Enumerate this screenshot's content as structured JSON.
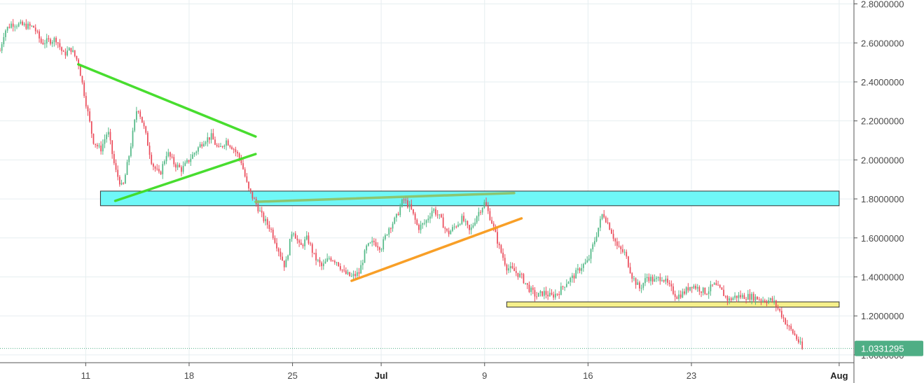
{
  "chart_data": {
    "type": "candlestick",
    "y_axis": {
      "ticks": [
        "2.8000000",
        "2.6000000",
        "2.4000000",
        "2.2000000",
        "2.0000000",
        "1.8000000",
        "1.6000000",
        "1.4000000",
        "1.2000000",
        "1.0000000"
      ],
      "tick_values": [
        2.8,
        2.6,
        2.4,
        2.2,
        2.0,
        1.8,
        1.6,
        1.4,
        1.2,
        1.0
      ],
      "ylim": [
        0.96,
        2.82
      ]
    },
    "x_axis": {
      "labels": [
        {
          "text": "11",
          "day": 11
        },
        {
          "text": "18",
          "day": 18
        },
        {
          "text": "25",
          "day": 25
        },
        {
          "text": "Jul",
          "day": 31,
          "bold": true
        },
        {
          "text": "9",
          "day": 38
        },
        {
          "text": "16",
          "day": 45
        },
        {
          "text": "23",
          "day": 52
        },
        {
          "text": "Aug",
          "day": 62,
          "bold": true
        }
      ],
      "xlim": [
        5.2,
        63.0
      ]
    },
    "last_price": {
      "text": "1.0331295",
      "value": 1.0331295,
      "color": "#4fae85"
    },
    "colors": {
      "up": "#53b987",
      "down": "#eb4d5c",
      "grid": "#e6eef0",
      "axis": "#555555"
    },
    "path": [
      [
        5.2,
        2.56
      ],
      [
        5.5,
        2.66
      ],
      [
        6.0,
        2.7
      ],
      [
        7.5,
        2.68
      ],
      [
        8.0,
        2.6
      ],
      [
        9.0,
        2.62
      ],
      [
        9.5,
        2.54
      ],
      [
        10.0,
        2.57
      ],
      [
        10.5,
        2.5
      ],
      [
        11.0,
        2.3
      ],
      [
        11.5,
        2.1
      ],
      [
        12.0,
        2.05
      ],
      [
        12.5,
        2.15
      ],
      [
        13.0,
        1.95
      ],
      [
        13.5,
        1.85
      ],
      [
        14.0,
        2.05
      ],
      [
        14.5,
        2.28
      ],
      [
        15.0,
        2.15
      ],
      [
        15.5,
        1.98
      ],
      [
        16.0,
        1.92
      ],
      [
        16.5,
        2.04
      ],
      [
        17.0,
        1.98
      ],
      [
        17.5,
        1.95
      ],
      [
        18.0,
        2.0
      ],
      [
        18.5,
        2.05
      ],
      [
        19.0,
        2.1
      ],
      [
        19.5,
        2.12
      ],
      [
        20.0,
        2.05
      ],
      [
        20.5,
        2.1
      ],
      [
        21.0,
        2.06
      ],
      [
        21.5,
        2.0
      ],
      [
        22.0,
        1.85
      ],
      [
        22.5,
        1.78
      ],
      [
        23.0,
        1.7
      ],
      [
        23.5,
        1.65
      ],
      [
        24.0,
        1.55
      ],
      [
        24.5,
        1.45
      ],
      [
        25.0,
        1.65
      ],
      [
        25.5,
        1.55
      ],
      [
        26.0,
        1.6
      ],
      [
        26.5,
        1.5
      ],
      [
        27.0,
        1.45
      ],
      [
        27.5,
        1.5
      ],
      [
        28.0,
        1.48
      ],
      [
        28.5,
        1.42
      ],
      [
        29.0,
        1.4
      ],
      [
        29.5,
        1.42
      ],
      [
        30.0,
        1.55
      ],
      [
        30.5,
        1.58
      ],
      [
        31.0,
        1.55
      ],
      [
        31.5,
        1.65
      ],
      [
        32.0,
        1.7
      ],
      [
        32.5,
        1.8
      ],
      [
        33.0,
        1.75
      ],
      [
        33.5,
        1.65
      ],
      [
        34.0,
        1.68
      ],
      [
        34.5,
        1.75
      ],
      [
        35.0,
        1.7
      ],
      [
        35.5,
        1.62
      ],
      [
        36.0,
        1.66
      ],
      [
        36.5,
        1.7
      ],
      [
        37.0,
        1.63
      ],
      [
        37.5,
        1.72
      ],
      [
        38.0,
        1.78
      ],
      [
        38.5,
        1.68
      ],
      [
        39.0,
        1.55
      ],
      [
        39.5,
        1.45
      ],
      [
        40.0,
        1.43
      ],
      [
        40.5,
        1.4
      ],
      [
        41.0,
        1.34
      ],
      [
        41.5,
        1.3
      ],
      [
        42.0,
        1.32
      ],
      [
        42.5,
        1.3
      ],
      [
        43.0,
        1.32
      ],
      [
        43.5,
        1.37
      ],
      [
        44.0,
        1.4
      ],
      [
        44.5,
        1.45
      ],
      [
        45.0,
        1.48
      ],
      [
        45.5,
        1.6
      ],
      [
        46.0,
        1.73
      ],
      [
        46.5,
        1.65
      ],
      [
        47.0,
        1.55
      ],
      [
        47.5,
        1.52
      ],
      [
        48.0,
        1.4
      ],
      [
        48.5,
        1.34
      ],
      [
        49.0,
        1.4
      ],
      [
        49.5,
        1.38
      ],
      [
        50.0,
        1.4
      ],
      [
        50.5,
        1.35
      ],
      [
        51.0,
        1.3
      ],
      [
        51.5,
        1.32
      ],
      [
        52.0,
        1.36
      ],
      [
        52.5,
        1.34
      ],
      [
        53.0,
        1.32
      ],
      [
        53.5,
        1.36
      ],
      [
        54.0,
        1.33
      ],
      [
        54.5,
        1.28
      ],
      [
        55.0,
        1.3
      ],
      [
        55.5,
        1.3
      ],
      [
        56.0,
        1.3
      ],
      [
        56.5,
        1.29
      ],
      [
        57.0,
        1.28
      ],
      [
        57.5,
        1.28
      ],
      [
        58.0,
        1.22
      ],
      [
        58.5,
        1.15
      ],
      [
        59.0,
        1.1
      ],
      [
        59.5,
        1.035
      ]
    ],
    "annotations": {
      "triangle_upper": {
        "from": [
          10.5,
          2.49
        ],
        "to": [
          22.5,
          2.12
        ],
        "color": "#3fdc24"
      },
      "triangle_lower": {
        "from": [
          13.0,
          1.79
        ],
        "to": [
          22.5,
          2.03
        ],
        "color": "#3fdc24"
      },
      "cyan_zone": {
        "x": [
          12.0,
          62.0
        ],
        "y": [
          1.765,
          1.84
        ],
        "color": "#6ff7f7"
      },
      "green_line": {
        "from": [
          22.5,
          1.785
        ],
        "to": [
          40.0,
          1.83
        ],
        "color": "#8dc46a"
      },
      "orange_line": {
        "from": [
          29.0,
          1.38
        ],
        "to": [
          40.5,
          1.7
        ],
        "color": "#f89a1c"
      },
      "yellow_zone": {
        "x": [
          39.5,
          62.0
        ],
        "y": [
          1.245,
          1.272
        ],
        "color": "#f5ef8a"
      }
    }
  }
}
